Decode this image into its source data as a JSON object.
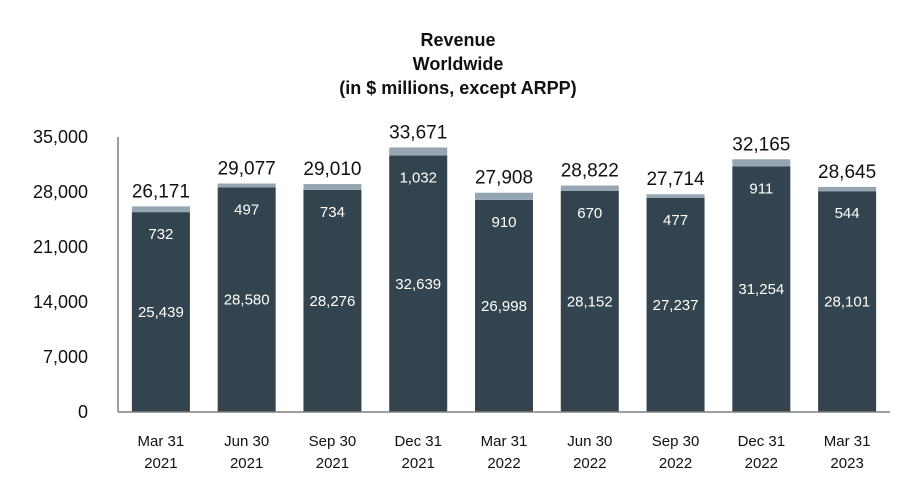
{
  "chart_data": {
    "type": "bar",
    "stacked": true,
    "title": [
      "Revenue",
      "Worldwide",
      "(in $ millions, except ARPP)"
    ],
    "categories": [
      [
        "Mar 31",
        "2021"
      ],
      [
        "Jun 30",
        "2021"
      ],
      [
        "Sep 30",
        "2021"
      ],
      [
        "Dec 31",
        "2021"
      ],
      [
        "Mar 31",
        "2022"
      ],
      [
        "Jun 30",
        "2022"
      ],
      [
        "Sep 30",
        "2022"
      ],
      [
        "Dec 31",
        "2022"
      ],
      [
        "Mar 31",
        "2023"
      ]
    ],
    "series": [
      {
        "name": "Lower segment",
        "color": "#33444f",
        "values": [
          25439,
          28580,
          28276,
          32639,
          26998,
          28152,
          27237,
          31254,
          28101
        ]
      },
      {
        "name": "Upper segment",
        "color": "#95a6b2",
        "values": [
          732,
          497,
          734,
          1032,
          910,
          670,
          477,
          911,
          544
        ]
      }
    ],
    "totals": [
      26171,
      29077,
      29010,
      33671,
      27908,
      28822,
      27714,
      32165,
      28645
    ],
    "yticks": [
      0,
      7000,
      14000,
      21000,
      28000,
      35000
    ],
    "ylim": [
      0,
      35000
    ]
  }
}
